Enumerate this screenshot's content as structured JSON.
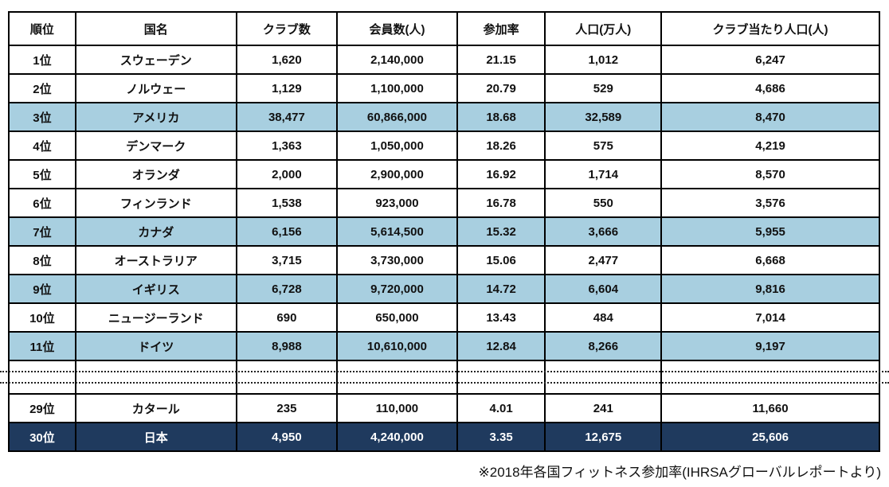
{
  "page": {
    "footnote": "※2018年各国フィットネス参加率(IHRSAグローバルレポートより)"
  },
  "colors": {
    "highlight_blue": "#a8cfe0",
    "japan_navy": "#1f3a5e",
    "border_black": "#000000",
    "japan_text": "#ffffff"
  },
  "table": {
    "headers": [
      "順位",
      "国名",
      "クラブ数",
      "会員数(人)",
      "参加率",
      "人口(万人)",
      "クラブ当たり人口(人)"
    ],
    "rows_top": [
      {
        "style": "plain",
        "cells": [
          "1位",
          "スウェーデン",
          "1,620",
          "2,140,000",
          "21.15",
          "1,012",
          "6,247"
        ]
      },
      {
        "style": "plain",
        "cells": [
          "2位",
          "ノルウェー",
          "1,129",
          "1,100,000",
          "20.79",
          "529",
          "4,686"
        ]
      },
      {
        "style": "highlight",
        "cells": [
          "3位",
          "アメリカ",
          "38,477",
          "60,866,000",
          "18.68",
          "32,589",
          "8,470"
        ]
      },
      {
        "style": "plain",
        "cells": [
          "4位",
          "デンマーク",
          "1,363",
          "1,050,000",
          "18.26",
          "575",
          "4,219"
        ]
      },
      {
        "style": "plain",
        "cells": [
          "5位",
          "オランダ",
          "2,000",
          "2,900,000",
          "16.92",
          "1,714",
          "8,570"
        ]
      },
      {
        "style": "plain",
        "cells": [
          "6位",
          "フィンランド",
          "1,538",
          "923,000",
          "16.78",
          "550",
          "3,576"
        ]
      },
      {
        "style": "highlight",
        "cells": [
          "7位",
          "カナダ",
          "6,156",
          "5,614,500",
          "15.32",
          "3,666",
          "5,955"
        ]
      },
      {
        "style": "plain",
        "cells": [
          "8位",
          "オーストラリア",
          "3,715",
          "3,730,000",
          "15.06",
          "2,477",
          "6,668"
        ]
      },
      {
        "style": "highlight",
        "cells": [
          "9位",
          "イギリス",
          "6,728",
          "9,720,000",
          "14.72",
          "6,604",
          "9,816"
        ]
      },
      {
        "style": "plain",
        "cells": [
          "10位",
          "ニュージーランド",
          "690",
          "650,000",
          "13.43",
          "484",
          "7,014"
        ]
      },
      {
        "style": "highlight",
        "cells": [
          "11位",
          "ドイツ",
          "8,988",
          "10,610,000",
          "12.84",
          "8,266",
          "9,197"
        ]
      }
    ],
    "rows_bottom": [
      {
        "style": "plain",
        "cells": [
          "29位",
          "カタール",
          "235",
          "110,000",
          "4.01",
          "241",
          "11,660"
        ]
      },
      {
        "style": "japan",
        "cells": [
          "30位",
          "日本",
          "4,950",
          "4,240,000",
          "3.35",
          "12,675",
          "25,606"
        ]
      }
    ]
  },
  "chart_data": {
    "type": "table",
    "title": "",
    "columns": [
      "順位",
      "国名",
      "クラブ数",
      "会員数(人)",
      "参加率",
      "人口(万人)",
      "クラブ当たり人口(人)"
    ],
    "rows": [
      [
        "1位",
        "スウェーデン",
        1620,
        2140000,
        21.15,
        1012,
        6247
      ],
      [
        "2位",
        "ノルウェー",
        1129,
        1100000,
        20.79,
        529,
        4686
      ],
      [
        "3位",
        "アメリカ",
        38477,
        60866000,
        18.68,
        32589,
        8470
      ],
      [
        "4位",
        "デンマーク",
        1363,
        1050000,
        18.26,
        575,
        4219
      ],
      [
        "5位",
        "オランダ",
        2000,
        2900000,
        16.92,
        1714,
        8570
      ],
      [
        "6位",
        "フィンランド",
        1538,
        923000,
        16.78,
        550,
        3576
      ],
      [
        "7位",
        "カナダ",
        6156,
        5614500,
        15.32,
        3666,
        5955
      ],
      [
        "8位",
        "オーストラリア",
        3715,
        3730000,
        15.06,
        2477,
        6668
      ],
      [
        "9位",
        "イギリス",
        6728,
        9720000,
        14.72,
        6604,
        9816
      ],
      [
        "10位",
        "ニュージーランド",
        690,
        650000,
        13.43,
        484,
        7014
      ],
      [
        "11位",
        "ドイツ",
        8988,
        10610000,
        12.84,
        8266,
        9197
      ],
      [
        "29位",
        "カタール",
        235,
        110000,
        4.01,
        241,
        11660
      ],
      [
        "30位",
        "日本",
        4950,
        4240000,
        3.35,
        12675,
        25606
      ]
    ],
    "layout_hints": {
      "highlighted_rows": [
        "3位",
        "7位",
        "9位",
        "11位"
      ],
      "emphasized_row": "30位",
      "dotted_break_between": [
        "11位",
        "29位"
      ]
    },
    "note": "※2018年各国フィットネス参加率(IHRSAグローバルレポートより)"
  }
}
